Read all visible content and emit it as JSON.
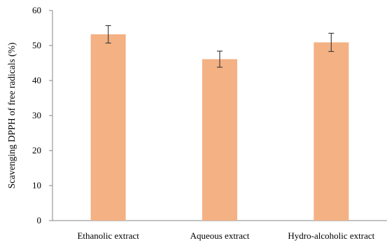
{
  "chart_data": {
    "type": "bar",
    "title": "",
    "xlabel": "",
    "ylabel": "Scavenging DPPH of free radicals (%)",
    "ylim": [
      0,
      60
    ],
    "yticks": [
      0,
      10,
      20,
      30,
      40,
      50,
      60
    ],
    "categories": [
      "Ethanolic extract",
      "Aqueous extract",
      "Hydro-alcoholic extract"
    ],
    "values": [
      53.2,
      46.1,
      50.9
    ],
    "errors": [
      2.5,
      2.3,
      2.6
    ],
    "bar_color": "#F4B183",
    "error_bar_color": "#404040",
    "axis_color": "#868686",
    "grid": false,
    "legend": "none"
  }
}
